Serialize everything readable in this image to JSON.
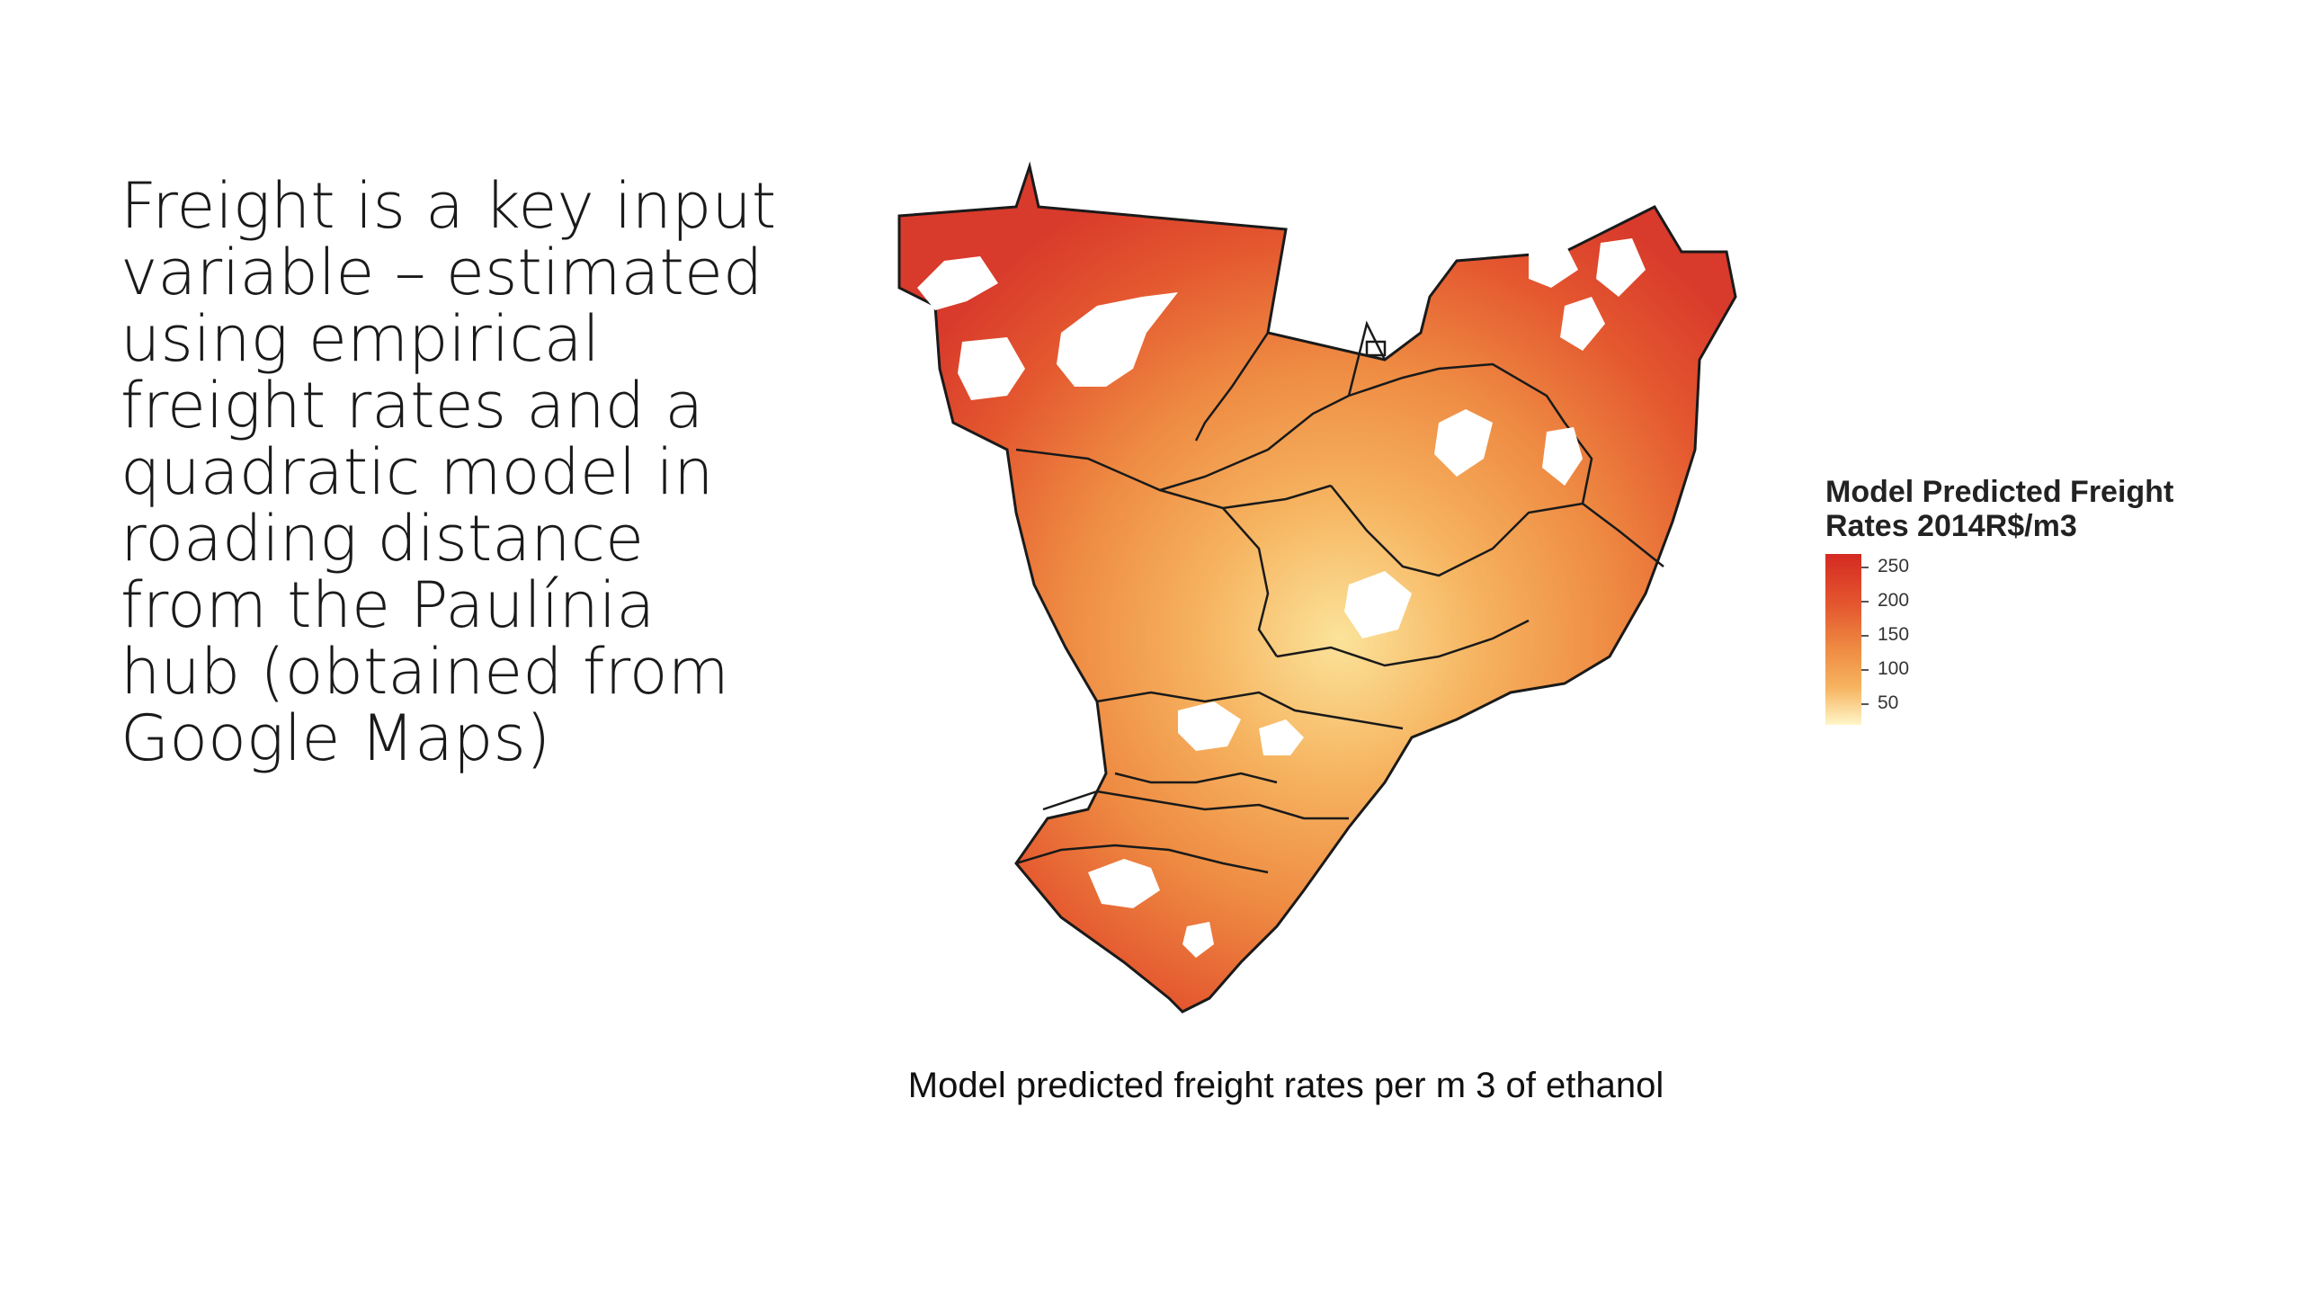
{
  "slide": {
    "text_lines": [
      "Freight is a key input",
      "variable – estimated",
      "using empirical",
      "freight rates and a",
      "quadratic model in",
      "roading distance",
      "from the Paulínia",
      "hub (obtained from",
      "Google Maps)"
    ]
  },
  "map": {
    "caption": "Model predicted freight rates per m 3 of ethanol",
    "legend": {
      "title_line1": "Model Predicted Freight",
      "title_line2": "Rates 2014R$/m3",
      "ticks": [
        "250",
        "200",
        "150",
        "100",
        "50"
      ],
      "color_low": "#fff6c8",
      "color_high": "#d42a22"
    },
    "colors": {
      "very_high": "#d83a2b",
      "high": "#e4572f",
      "mid": "#ee8a42",
      "low": "#f6b35f",
      "very_low": "#fbe39a",
      "no_data": "#ffffff",
      "border": "#1a1a1a"
    }
  }
}
